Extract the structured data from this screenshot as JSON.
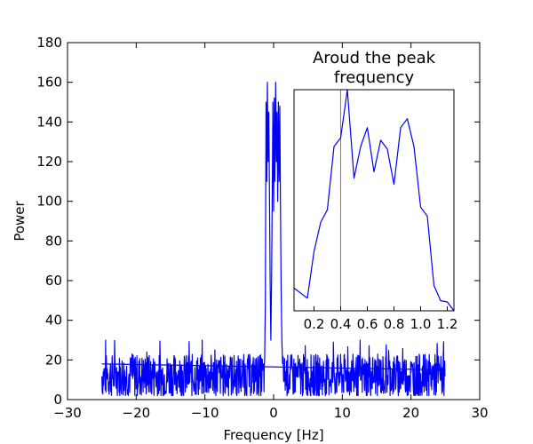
{
  "colors": {
    "series": "#0000ff",
    "marker": "#808080",
    "frame": "#000000"
  },
  "chart_data": [
    {
      "type": "line",
      "title": "",
      "xlabel": "Frequency [Hz]",
      "ylabel": "Power",
      "xlim": [
        -30,
        30
      ],
      "ylim": [
        0,
        180
      ],
      "x_ticks": [
        -30,
        -20,
        -10,
        0,
        10,
        20,
        30
      ],
      "x_tick_labels": [
        "−30",
        "−20",
        "−10",
        "0",
        "10",
        "20",
        "30"
      ],
      "y_ticks": [
        0,
        20,
        40,
        60,
        80,
        100,
        120,
        140,
        160,
        180
      ],
      "y_tick_labels": [
        "0",
        "20",
        "40",
        "60",
        "80",
        "100",
        "120",
        "140",
        "160",
        "180"
      ],
      "grid": false,
      "noise_x_range": [
        -25,
        25
      ],
      "noise_y_range": [
        2,
        30
      ],
      "noise_mean": 12,
      "baseline_line": {
        "x": [
          -25,
          25
        ],
        "y": [
          18,
          15
        ]
      },
      "peak_region": {
        "x": [
          -1.3,
          -1.2,
          -1.1,
          -1.0,
          -0.9,
          -0.8,
          -0.7,
          -0.6,
          -0.5,
          -0.4,
          -0.3,
          -0.2,
          -0.1,
          0.0,
          0.1,
          0.2,
          0.3,
          0.4,
          0.5,
          0.6,
          0.7,
          0.8,
          0.9,
          1.0,
          1.1,
          1.2,
          1.3
        ],
        "y": [
          20,
          48,
          150,
          110,
          160,
          120,
          145,
          100,
          60,
          30,
          60,
          105,
          150,
          95,
          152,
          110,
          160,
          120,
          145,
          100,
          150,
          110,
          148,
          100,
          55,
          30,
          18
        ]
      }
    },
    {
      "type": "line",
      "title": "Aroud the peak frequency",
      "title_lines": [
        "Aroud the peak",
        "frequency"
      ],
      "xlim": [
        0.05,
        1.25
      ],
      "ylim": [
        0,
        175
      ],
      "x_ticks": [
        0.2,
        0.4,
        0.6,
        0.8,
        1.0,
        1.2
      ],
      "x_tick_labels": [
        "0.2",
        "0.4",
        "0.6",
        "0.8",
        "1.0",
        "1.2"
      ],
      "x": [
        0.05,
        0.15,
        0.2,
        0.25,
        0.3,
        0.35,
        0.4,
        0.45,
        0.5,
        0.55,
        0.6,
        0.65,
        0.7,
        0.75,
        0.8,
        0.85,
        0.9,
        0.95,
        1.0,
        1.05,
        1.1,
        1.15,
        1.2,
        1.25
      ],
      "y": [
        18,
        10,
        47,
        70,
        80,
        130,
        137,
        175,
        105,
        130,
        145,
        110,
        135,
        128,
        100,
        145,
        152,
        130,
        82,
        75,
        20,
        8,
        7,
        0
      ],
      "marker_x": 0.4
    }
  ]
}
